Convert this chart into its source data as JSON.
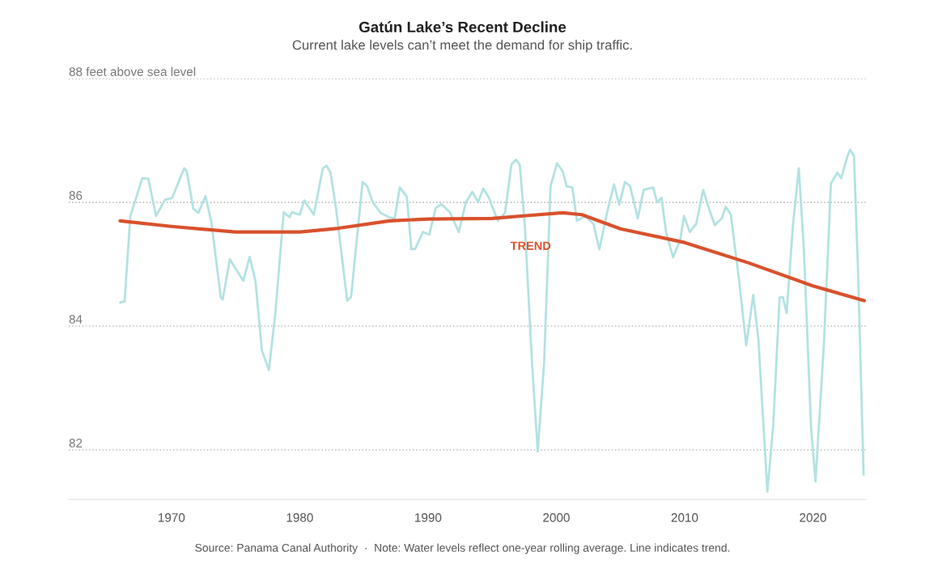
{
  "chart_data": {
    "type": "line",
    "title": "Gatún Lake’s Recent Decline",
    "subtitle": "Current lake levels can’t meet the demand for ship traffic.",
    "annotations": [
      "Source: Panama Canal Authority  ·  Note: Water levels reflect one-year rolling average. Line indicates trend."
    ],
    "series": [
      {
        "color": "#b3e2e2",
        "x": [
          1966.0,
          1966.35,
          1966.8,
          1967.73,
          1968.2,
          1968.8,
          1969.5,
          1970.05,
          1971.0,
          1971.2,
          1971.7,
          1972.1,
          1972.65,
          1973.1,
          1973.85,
          1974.0,
          1974.55,
          1974.85,
          1975.6,
          1976.1,
          1976.55,
          1977.05,
          1977.6,
          1978.1,
          1978.75,
          1979.2,
          1979.4,
          1980.0,
          1980.35,
          1981.1,
          1981.8,
          1982.1,
          1982.4,
          1982.85,
          1983.7,
          1984.0,
          1984.9,
          1985.25,
          1985.7,
          1986.3,
          1986.95,
          1987.4,
          1987.8,
          1988.35,
          1988.7,
          1989.0,
          1989.6,
          1990.1,
          1990.6,
          1991.05,
          1991.7,
          1992.4,
          1992.95,
          1993.45,
          1993.9,
          1994.3,
          1994.7,
          1995.45,
          1996.0,
          1996.5,
          1996.85,
          1997.15,
          1997.55,
          1998.1,
          1998.55,
          1999.05,
          1999.55,
          2000.05,
          2000.5,
          2000.8,
          2001.25,
          2001.6,
          2002.25,
          2002.9,
          2003.35,
          2003.95,
          2004.5,
          2004.9,
          2005.35,
          2005.75,
          2006.35,
          2006.8,
          2007.55,
          2007.85,
          2008.2,
          2008.55,
          2009.1,
          2009.65,
          2009.95,
          2010.4,
          2010.9,
          2011.45,
          2011.85,
          2012.35,
          2012.9,
          2013.2,
          2013.6,
          2014.25,
          2014.8,
          2015.35,
          2015.75,
          2016.45,
          2016.9,
          2017.4,
          2017.65,
          2017.95,
          2018.45,
          2018.9,
          2019.3,
          2019.85,
          2020.2,
          2020.85,
          2021.4,
          2021.9,
          2022.2,
          2022.7,
          2022.9,
          2023.2,
          2023.5,
          2023.95
        ],
        "values": [
          84.38,
          84.4,
          85.78,
          86.39,
          86.38,
          85.78,
          86.04,
          86.07,
          86.55,
          86.5,
          85.9,
          85.83,
          86.1,
          85.7,
          84.46,
          84.43,
          85.08,
          84.98,
          84.73,
          85.12,
          84.73,
          83.61,
          83.29,
          84.21,
          85.84,
          85.76,
          85.84,
          85.8,
          86.03,
          85.8,
          86.55,
          86.59,
          86.48,
          85.87,
          84.41,
          84.47,
          86.33,
          86.26,
          86.0,
          85.83,
          85.76,
          85.74,
          86.24,
          86.09,
          85.24,
          85.25,
          85.52,
          85.48,
          85.91,
          85.97,
          85.84,
          85.52,
          86.0,
          86.17,
          86.0,
          86.22,
          86.09,
          85.7,
          85.83,
          86.61,
          86.69,
          86.61,
          85.61,
          83.42,
          81.97,
          83.42,
          86.26,
          86.63,
          86.5,
          86.26,
          86.24,
          85.7,
          85.78,
          85.65,
          85.24,
          85.83,
          86.29,
          85.96,
          86.33,
          86.26,
          85.74,
          86.2,
          86.24,
          86.0,
          86.07,
          85.52,
          85.11,
          85.39,
          85.78,
          85.52,
          85.65,
          86.2,
          85.93,
          85.63,
          85.74,
          85.93,
          85.8,
          84.73,
          83.69,
          84.5,
          83.78,
          81.33,
          82.38,
          84.46,
          84.47,
          84.21,
          85.65,
          86.55,
          85.22,
          82.38,
          81.49,
          83.69,
          86.3,
          86.48,
          86.39,
          86.75,
          86.85,
          86.75,
          84.99,
          81.6
        ]
      },
      {
        "name": "TREND",
        "color": "#d9512c",
        "x": [
          1966.0,
          1970.0,
          1975.0,
          1980.0,
          1983.0,
          1987.0,
          1990.0,
          1995.0,
          1998.0,
          2000.5,
          2002.0,
          2005.0,
          2010.0,
          2015.0,
          2020.0,
          2024.0
        ],
        "values": [
          85.7,
          85.61,
          85.52,
          85.52,
          85.58,
          85.7,
          85.73,
          85.74,
          85.79,
          85.83,
          85.8,
          85.57,
          85.35,
          85.02,
          84.65,
          84.41
        ]
      }
    ],
    "xlim": [
      1962.0,
      2024.13
    ],
    "xticks": [
      1970,
      1980,
      1990,
      2000,
      2010,
      2020
    ],
    "ylim": [
      81.2,
      88
    ],
    "yticks": [
      {
        "value": 82,
        "label": "82"
      },
      {
        "value": 84,
        "label": "84"
      },
      {
        "value": 86,
        "label": "86"
      },
      {
        "value": 88,
        "label": "88 feet above sea level"
      }
    ],
    "grid": "y",
    "legend": false,
    "marker": "none",
    "line_style": "solid"
  }
}
